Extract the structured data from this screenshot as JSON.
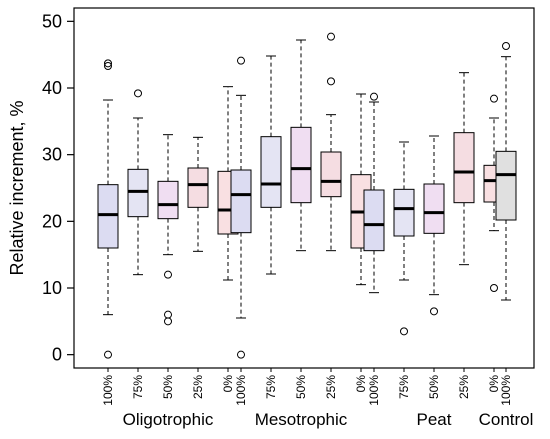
{
  "chart_data": {
    "type": "boxplot",
    "ylabel": "Relative increment, %",
    "ylim": [
      -2,
      52
    ],
    "yticks": [
      0,
      10,
      20,
      30,
      40,
      50
    ],
    "groups": [
      "Oligotrophic",
      "Mesotrophic",
      "Peat",
      "Control"
    ],
    "boxes": [
      {
        "group": "Oligotrophic",
        "label": "100%",
        "color": "#dcdcf2",
        "whisker_low": 6,
        "q1": 16,
        "median": 21,
        "q3": 25.5,
        "whisker_high": 38.2,
        "outliers": [
          0,
          43.3,
          43.7
        ]
      },
      {
        "group": "Oligotrophic",
        "label": "75%",
        "color": "#e4e4f3",
        "whisker_low": 12,
        "q1": 20.7,
        "median": 24.5,
        "q3": 27.8,
        "whisker_high": 35.5,
        "outliers": [
          39.2
        ]
      },
      {
        "group": "Oligotrophic",
        "label": "50%",
        "color": "#f0def2",
        "whisker_low": 15,
        "q1": 20.4,
        "median": 22.5,
        "q3": 26,
        "whisker_high": 33,
        "outliers": [
          12,
          6,
          5
        ]
      },
      {
        "group": "Oligotrophic",
        "label": "25%",
        "color": "#f5dde2",
        "whisker_low": 15.5,
        "q1": 22.1,
        "median": 25.5,
        "q3": 28,
        "whisker_high": 32.6,
        "outliers": []
      },
      {
        "group": "Oligotrophic",
        "label": "0%",
        "color": "#f9e0e2",
        "whisker_low": 11.2,
        "q1": 18.1,
        "median": 21.7,
        "q3": 27.5,
        "whisker_high": 40.2,
        "outliers": []
      },
      {
        "group": "Mesotrophic",
        "label": "100%",
        "color": "#dcdcf2",
        "whisker_low": 5.5,
        "q1": 18.3,
        "median": 24,
        "q3": 27.7,
        "whisker_high": 38.9,
        "outliers": [
          0,
          44.1
        ]
      },
      {
        "group": "Mesotrophic",
        "label": "75%",
        "color": "#e4e4f3",
        "whisker_low": 12.1,
        "q1": 22.1,
        "median": 25.6,
        "q3": 32.7,
        "whisker_high": 44.8,
        "outliers": []
      },
      {
        "group": "Mesotrophic",
        "label": "50%",
        "color": "#f0def2",
        "whisker_low": 15.6,
        "q1": 22.8,
        "median": 27.9,
        "q3": 34.1,
        "whisker_high": 47.2,
        "outliers": []
      },
      {
        "group": "Mesotrophic",
        "label": "25%",
        "color": "#f5dde2",
        "whisker_low": 15.6,
        "q1": 23.7,
        "median": 26,
        "q3": 30.4,
        "whisker_high": 36,
        "outliers": [
          41,
          47.7
        ]
      },
      {
        "group": "Mesotrophic",
        "label": "0%",
        "color": "#f9e0e2",
        "whisker_low": 10.5,
        "q1": 16,
        "median": 21.4,
        "q3": 27,
        "whisker_high": 39.1,
        "outliers": []
      },
      {
        "group": "Peat",
        "label": "100%",
        "color": "#dcdcf2",
        "whisker_low": 9.3,
        "q1": 15.6,
        "median": 19.5,
        "q3": 24.7,
        "whisker_high": 37.9,
        "outliers": [
          38.7
        ]
      },
      {
        "group": "Peat",
        "label": "75%",
        "color": "#e4e4f3",
        "whisker_low": 11.2,
        "q1": 17.8,
        "median": 21.9,
        "q3": 24.8,
        "whisker_high": 31.9,
        "outliers": [
          3.5
        ]
      },
      {
        "group": "Peat",
        "label": "50%",
        "color": "#f0def2",
        "whisker_low": 9,
        "q1": 18.2,
        "median": 21.3,
        "q3": 25.6,
        "whisker_high": 32.8,
        "outliers": [
          6.5
        ]
      },
      {
        "group": "Peat",
        "label": "25%",
        "color": "#f5dde2",
        "whisker_low": 13.5,
        "q1": 22.8,
        "median": 27.4,
        "q3": 33.3,
        "whisker_high": 42.3,
        "outliers": []
      },
      {
        "group": "Peat",
        "label": "0%",
        "color": "#f9e0e2",
        "whisker_low": 18.6,
        "q1": 22.9,
        "median": 26.1,
        "q3": 28.4,
        "whisker_high": 35.5,
        "outliers": [
          38.4,
          10
        ]
      },
      {
        "group": "Control",
        "label": "100%",
        "color": "#e0e0e0",
        "whisker_low": 8.2,
        "q1": 20.2,
        "median": 27,
        "q3": 30.5,
        "whisker_high": 44.7,
        "outliers": [
          46.3
        ]
      }
    ]
  }
}
